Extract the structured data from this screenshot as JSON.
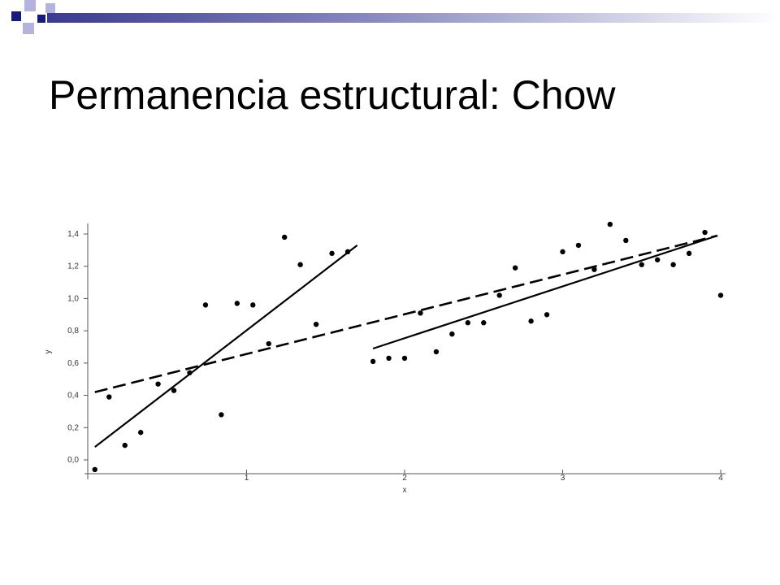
{
  "slide": {
    "title": "Permanencia estructural: Chow"
  },
  "colors": {
    "accent_navy": "#1a1a7a",
    "accent_lavender": "#b3b3dd",
    "bar_gradient_start": "#3a3a90",
    "bar_gradient_end": "#ffffff",
    "ink": "#000000"
  },
  "chart_data": {
    "type": "scatter",
    "title": "",
    "xlabel": "x",
    "ylabel": "y",
    "xlim": [
      0,
      4
    ],
    "ylim": [
      0,
      1.4
    ],
    "x_ticks": [
      {
        "v": 1,
        "label": "1"
      },
      {
        "v": 2,
        "label": "2"
      },
      {
        "v": 3,
        "label": "3"
      },
      {
        "v": 4,
        "label": "4"
      }
    ],
    "y_ticks": [
      {
        "v": 0.0,
        "label": "0,0"
      },
      {
        "v": 0.2,
        "label": "0,2"
      },
      {
        "v": 0.4,
        "label": "0,4"
      },
      {
        "v": 0.6,
        "label": "0,6"
      },
      {
        "v": 0.8,
        "label": "0,8"
      },
      {
        "v": 1.0,
        "label": "1,0"
      },
      {
        "v": 1.2,
        "label": "1,2"
      },
      {
        "v": 1.4,
        "label": "1,4"
      }
    ],
    "points": [
      [
        0.04,
        -0.06
      ],
      [
        0.13,
        0.39
      ],
      [
        0.23,
        0.09
      ],
      [
        0.33,
        0.17
      ],
      [
        0.44,
        0.47
      ],
      [
        0.54,
        0.43
      ],
      [
        0.64,
        0.54
      ],
      [
        0.74,
        0.96
      ],
      [
        0.84,
        0.28
      ],
      [
        0.94,
        0.97
      ],
      [
        1.04,
        0.96
      ],
      [
        1.14,
        0.72
      ],
      [
        1.24,
        1.38
      ],
      [
        1.34,
        1.21
      ],
      [
        1.44,
        0.84
      ],
      [
        1.54,
        1.28
      ],
      [
        1.64,
        1.29
      ],
      [
        1.8,
        0.61
      ],
      [
        1.9,
        0.63
      ],
      [
        2.0,
        0.63
      ],
      [
        2.1,
        0.91
      ],
      [
        2.2,
        0.67
      ],
      [
        2.3,
        0.78
      ],
      [
        2.4,
        0.85
      ],
      [
        2.5,
        0.85
      ],
      [
        2.6,
        1.02
      ],
      [
        2.7,
        1.19
      ],
      [
        2.8,
        0.86
      ],
      [
        2.9,
        0.9
      ],
      [
        3.0,
        1.29
      ],
      [
        3.1,
        1.33
      ],
      [
        3.2,
        1.18
      ],
      [
        3.3,
        1.46
      ],
      [
        3.4,
        1.36
      ],
      [
        3.5,
        1.21
      ],
      [
        3.6,
        1.24
      ],
      [
        3.7,
        1.21
      ],
      [
        3.8,
        1.28
      ],
      [
        3.9,
        1.41
      ],
      [
        4.0,
        1.02
      ]
    ],
    "fits": [
      {
        "style": "solid",
        "from": [
          0.04,
          0.08
        ],
        "to": [
          1.7,
          1.33
        ]
      },
      {
        "style": "solid",
        "from": [
          1.8,
          0.69
        ],
        "to": [
          3.98,
          1.39
        ]
      },
      {
        "style": "dashed",
        "from": [
          0.04,
          0.42
        ],
        "to": [
          3.98,
          1.39
        ]
      }
    ],
    "grid": false
  }
}
